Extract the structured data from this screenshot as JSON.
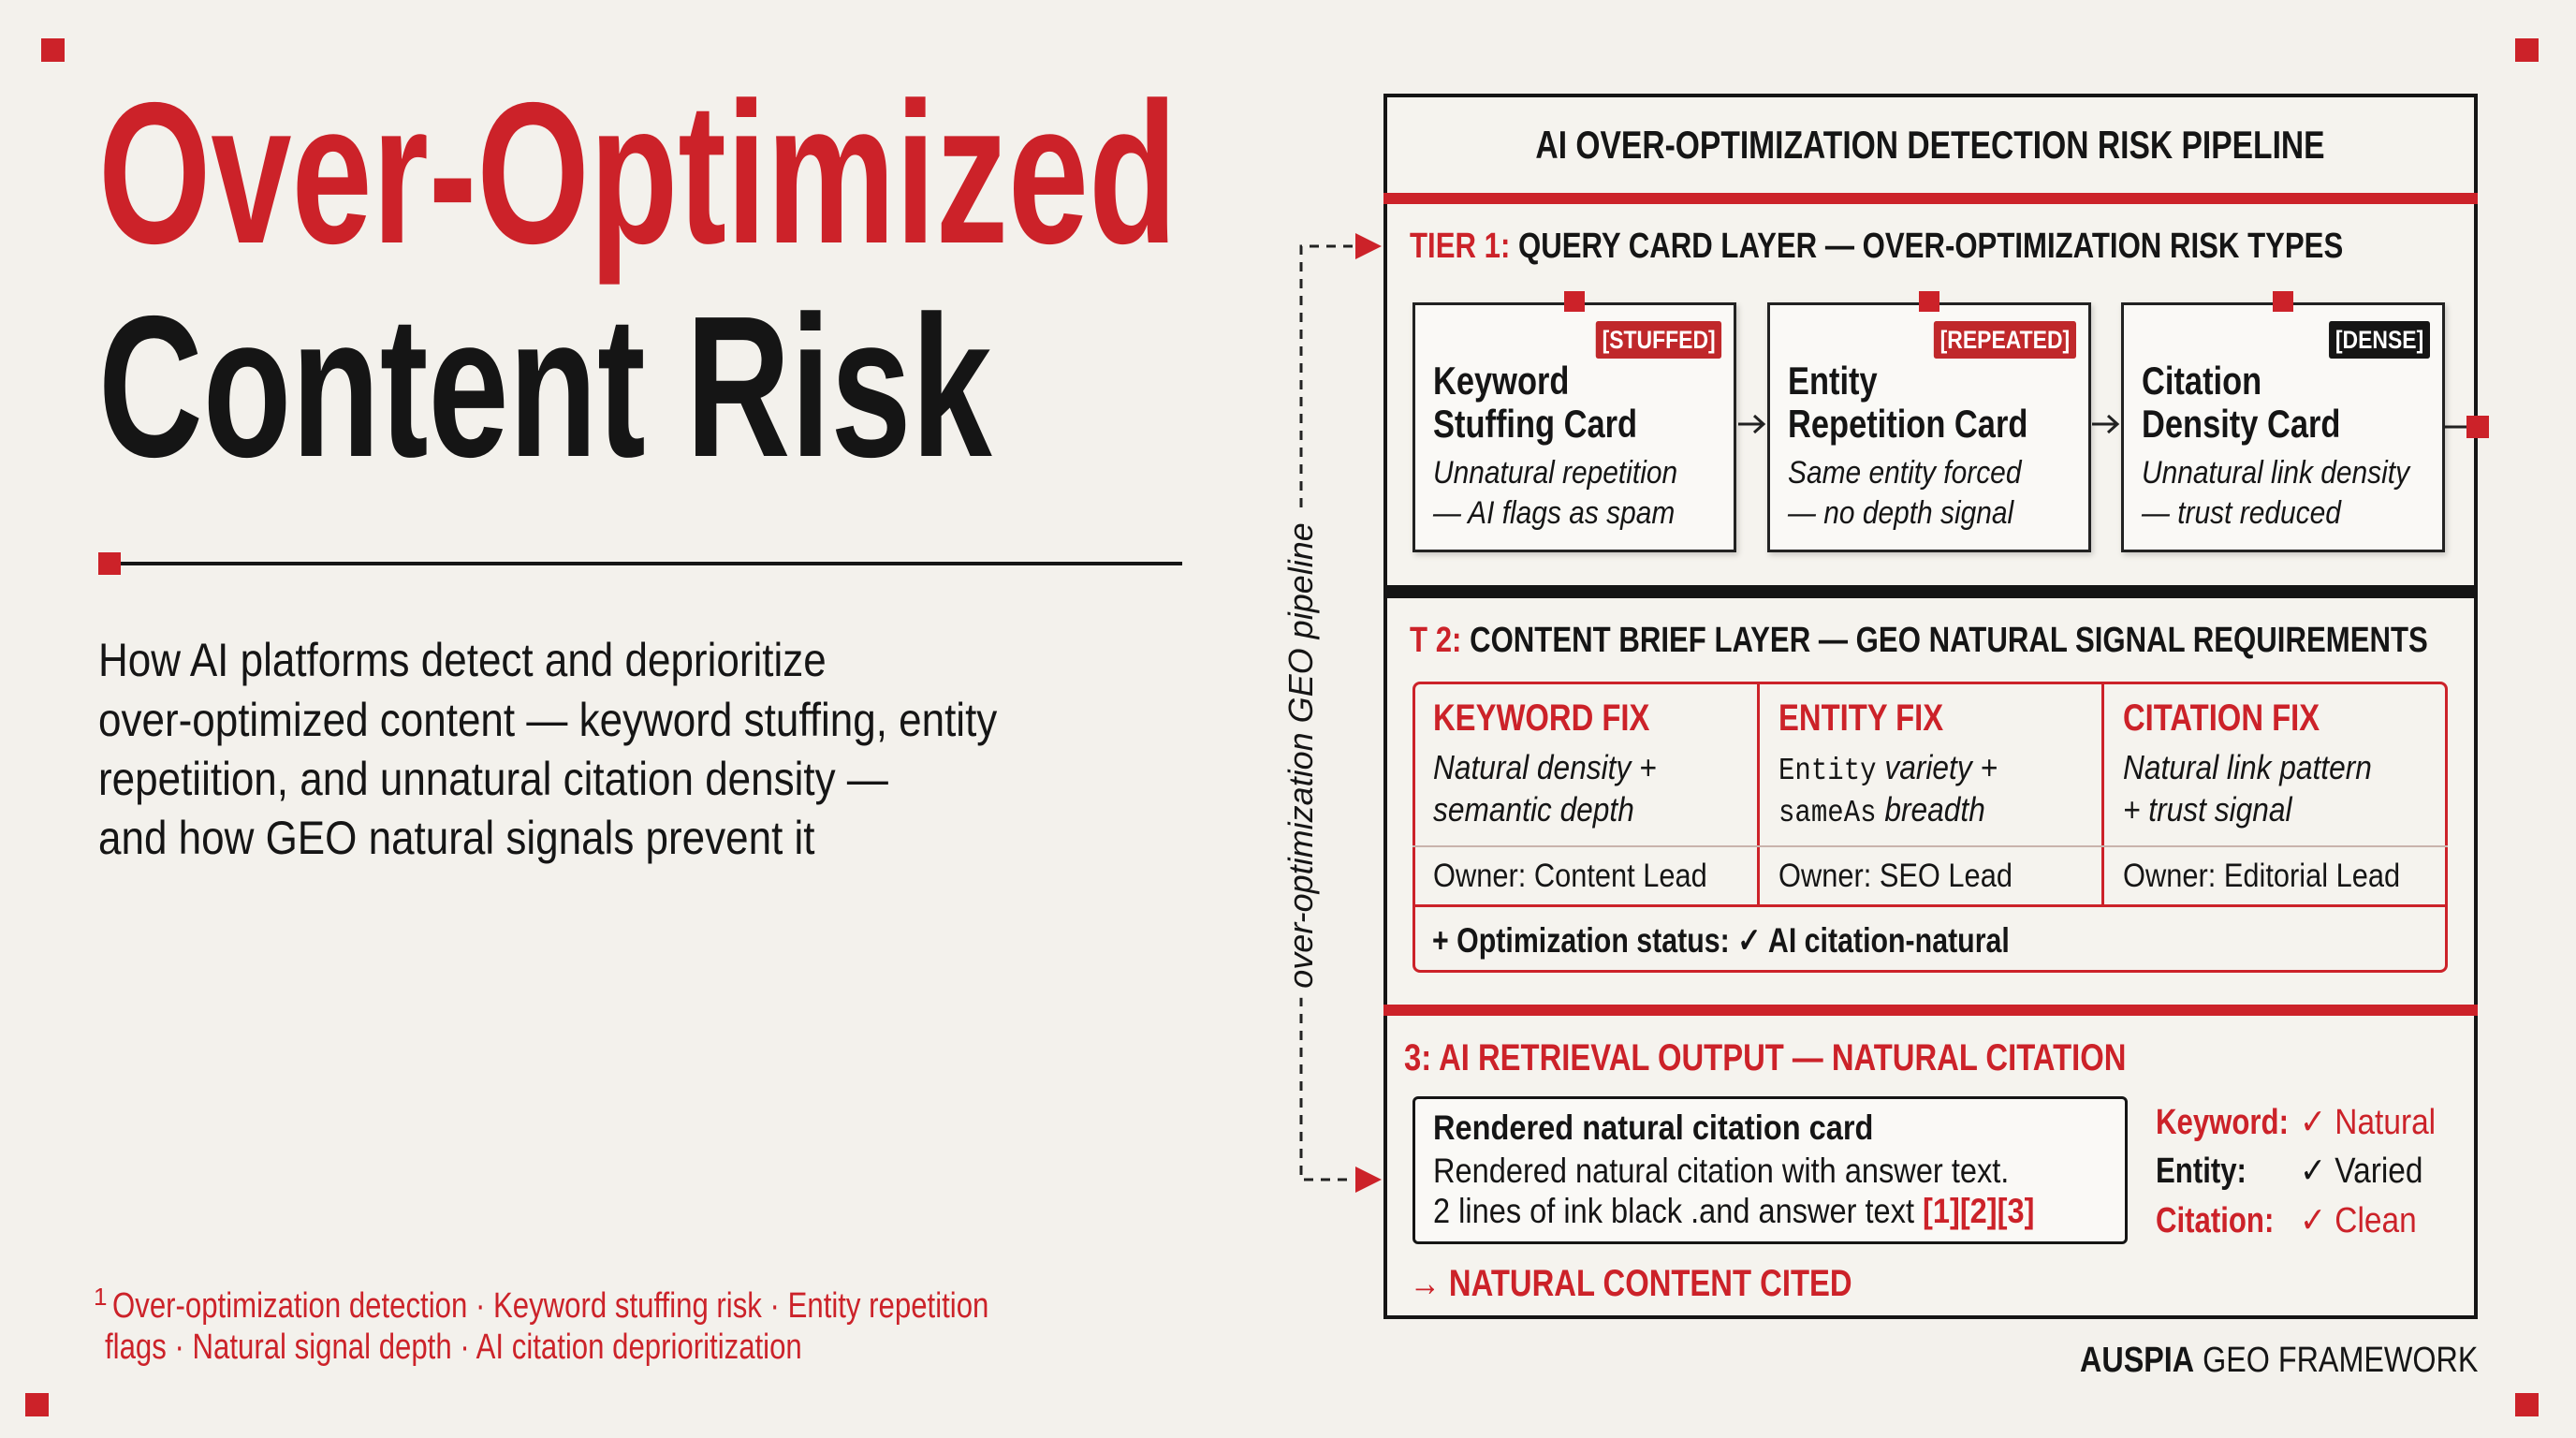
{
  "header": {
    "title_line1": "Over-Optimized",
    "title_line2": "Content Risk"
  },
  "description": [
    "How AI platforms detect and deprioritize",
    "over-optimized content — keyword stuffing, entity",
    "repetiition, and unnatural citation density —",
    "and how GEO natural signals prevent it"
  ],
  "footnote": {
    "marker": "1",
    "lines": [
      "Over-optimization detection · Keyword stuffing risk · Entity repetition",
      "flags · Natural signal depth · AI citation deprioritization"
    ]
  },
  "pipeline_label": "over-optimization GEO pipeline",
  "panel": {
    "title": "AI OVER-OPTIMIZATION DETECTION RISK PIPELINE",
    "tier1": {
      "prefix": "TIER 1:",
      "label": "QUERY CARD LAYER — OVER-OPTIMIZATION RISK TYPES",
      "cards": [
        {
          "tag": "[STUFFED]",
          "title": [
            "Keyword",
            "Stuffing Card"
          ],
          "desc": [
            "Unnatural repetition",
            "— AI flags as spam"
          ]
        },
        {
          "tag": "[REPEATED]",
          "title": [
            "Entity",
            "Repetition Card"
          ],
          "desc": [
            "Same entity forced",
            "— no depth signal"
          ]
        },
        {
          "tag": "[DENSE]",
          "title": [
            "Citation",
            "Density Card"
          ],
          "desc": [
            "Unnatural link density",
            "— trust reduced"
          ]
        }
      ]
    },
    "tier2": {
      "prefix": "T 2:",
      "label": "CONTENT BRIEF LAYER — GEO NATURAL SIGNAL REQUIREMENTS",
      "fixes": [
        {
          "title": "KEYWORD FIX",
          "desc": [
            [
              "Natural density +"
            ],
            [
              "semantic depth"
            ]
          ],
          "owner": "Owner: Content Lead"
        },
        {
          "title": "ENTITY FIX",
          "desc": [
            [
              "Entity",
              " variety +"
            ],
            [
              "sameAs",
              " breadth"
            ]
          ],
          "owner": "Owner: SEO Lead"
        },
        {
          "title": "CITATION FIX",
          "desc": [
            [
              "Natural link pattern"
            ],
            [
              "+ trust signal"
            ]
          ],
          "owner": "Owner: Editorial Lead"
        }
      ],
      "status": "+ Optimization status: ✓ AI citation-natural"
    },
    "tier3": {
      "prefix": "3:",
      "label": "AI RETRIEVAL OUTPUT — NATURAL CITATION",
      "card": {
        "title": "Rendered natural citation card",
        "line1": "Rendered natural citation with answer text.",
        "line2": "2 lines of ink black .and answer text",
        "refs": "[1][2][3]"
      },
      "checks": [
        {
          "label": "Keyword:",
          "value": "✓ Natural"
        },
        {
          "label": "Entity:",
          "value": "✓ Varied"
        },
        {
          "label": "Citation:",
          "value": "✓ Clean"
        }
      ],
      "result": "→ NATURAL CONTENT CITED"
    }
  },
  "brand": {
    "bold": "AUSPIA",
    "rest": "GEO FRAMEWORK"
  }
}
